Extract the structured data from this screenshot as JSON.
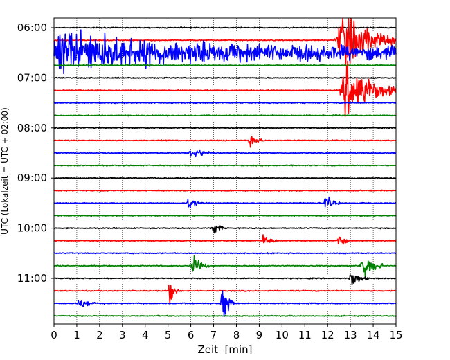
{
  "chart_data": {
    "type": "line",
    "title": "",
    "xlabel": "Zeit  [min]",
    "ylabel": "UTC (Lokalzeit = UTC + 02:00)",
    "xlim": [
      0,
      15
    ],
    "x_ticks": [
      0,
      1,
      2,
      3,
      4,
      5,
      6,
      7,
      8,
      9,
      10,
      11,
      12,
      13,
      14,
      15
    ],
    "x_tick_labels": [
      "0",
      "1",
      "2",
      "3",
      "4",
      "5",
      "6",
      "7",
      "8",
      "9",
      "10",
      "11",
      "12",
      "13",
      "14",
      "15"
    ],
    "y_tick_labels": [
      "06:00",
      "07:00",
      "08:00",
      "09:00",
      "10:00",
      "11:00"
    ],
    "grid": "vertical dotted lines at each minute",
    "legend": "none",
    "trace_interval_minutes": 15,
    "trace_start_times": [
      "06:00",
      "06:15",
      "06:30",
      "06:45",
      "07:00",
      "07:15",
      "07:30",
      "07:45",
      "08:00",
      "08:15",
      "08:30",
      "08:45",
      "09:00",
      "09:15",
      "09:30",
      "09:45",
      "10:00",
      "10:15",
      "10:30",
      "10:45",
      "11:00",
      "11:15",
      "11:30",
      "11:45"
    ],
    "color_cycle": [
      "#000000",
      "#ff0000",
      "#0000ff",
      "#008000"
    ],
    "events": [
      {
        "trace_start": "06:30",
        "minute_start": 0,
        "minute_end": 15,
        "peak_amplitude": 0.85,
        "description": "strong wave train at start, decaying"
      },
      {
        "trace_start": "06:15",
        "minute_start": 12.3,
        "minute_end": 15,
        "peak_amplitude": 1.0,
        "description": "very large saturated signal"
      },
      {
        "trace_start": "07:15",
        "minute_start": 12.5,
        "minute_end": 15,
        "peak_amplitude": 1.0,
        "description": "large signal continuing"
      },
      {
        "trace_start": "08:30",
        "minute_start": 5.9,
        "minute_end": 7.0,
        "peak_amplitude": 0.25
      },
      {
        "trace_start": "08:15",
        "minute_start": 8.5,
        "minute_end": 9.2,
        "peak_amplitude": 0.3
      },
      {
        "trace_start": "09:30",
        "minute_start": 5.8,
        "minute_end": 6.5,
        "peak_amplitude": 0.25
      },
      {
        "trace_start": "09:30",
        "minute_start": 11.8,
        "minute_end": 12.6,
        "peak_amplitude": 0.25
      },
      {
        "trace_start": "10:00",
        "minute_start": 6.9,
        "minute_end": 7.5,
        "peak_amplitude": 0.3
      },
      {
        "trace_start": "10:15",
        "minute_start": 9.1,
        "minute_end": 9.8,
        "peak_amplitude": 0.3
      },
      {
        "trace_start": "10:15",
        "minute_start": 12.4,
        "minute_end": 12.9,
        "peak_amplitude": 0.35
      },
      {
        "trace_start": "10:45",
        "minute_start": 6.0,
        "minute_end": 6.8,
        "peak_amplitude": 0.4
      },
      {
        "trace_start": "10:45",
        "minute_start": 13.4,
        "minute_end": 14.4,
        "peak_amplitude": 0.55
      },
      {
        "trace_start": "11:00",
        "minute_start": 12.9,
        "minute_end": 13.8,
        "peak_amplitude": 0.3
      },
      {
        "trace_start": "11:15",
        "minute_start": 5.0,
        "minute_end": 5.5,
        "peak_amplitude": 0.45
      },
      {
        "trace_start": "11:30",
        "minute_start": 1.0,
        "minute_end": 2.0,
        "peak_amplitude": 0.2
      },
      {
        "trace_start": "11:30",
        "minute_start": 7.3,
        "minute_end": 7.9,
        "peak_amplitude": 0.85
      }
    ]
  }
}
